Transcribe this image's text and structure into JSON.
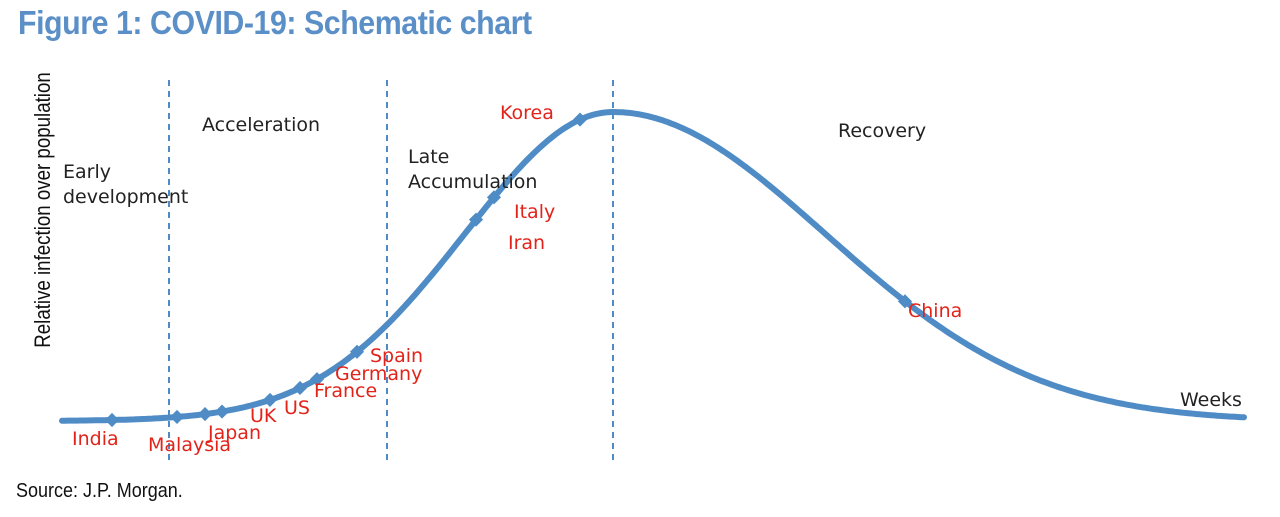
{
  "chart_data": {
    "type": "line",
    "title": "Figure 1: COVID-19: Schematic chart",
    "ylabel": "Relative infection over population",
    "xlabel": "Weeks",
    "source": "Source: J.P. Morgan.",
    "line_color": "#4f8cc6",
    "label_color": "#e2231a",
    "phase_lines": [
      {
        "name": "Early development"
      },
      {
        "name": "Acceleration"
      },
      {
        "name": "Late Accumulation"
      },
      {
        "name": "Recovery"
      }
    ],
    "phases": [
      {
        "lines": [
          "Early",
          "development"
        ]
      },
      {
        "lines": [
          "Acceleration"
        ]
      },
      {
        "lines": [
          "Late",
          "Accumulation"
        ]
      },
      {
        "lines": [
          "Recovery"
        ]
      }
    ],
    "countries": [
      {
        "name": "India"
      },
      {
        "name": "Malaysia"
      },
      {
        "name": "Japan"
      },
      {
        "name": "UK"
      },
      {
        "name": "US"
      },
      {
        "name": "France"
      },
      {
        "name": "Germany"
      },
      {
        "name": "Spain"
      },
      {
        "name": "Iran"
      },
      {
        "name": "Italy"
      },
      {
        "name": "Korea"
      },
      {
        "name": "China"
      }
    ]
  }
}
